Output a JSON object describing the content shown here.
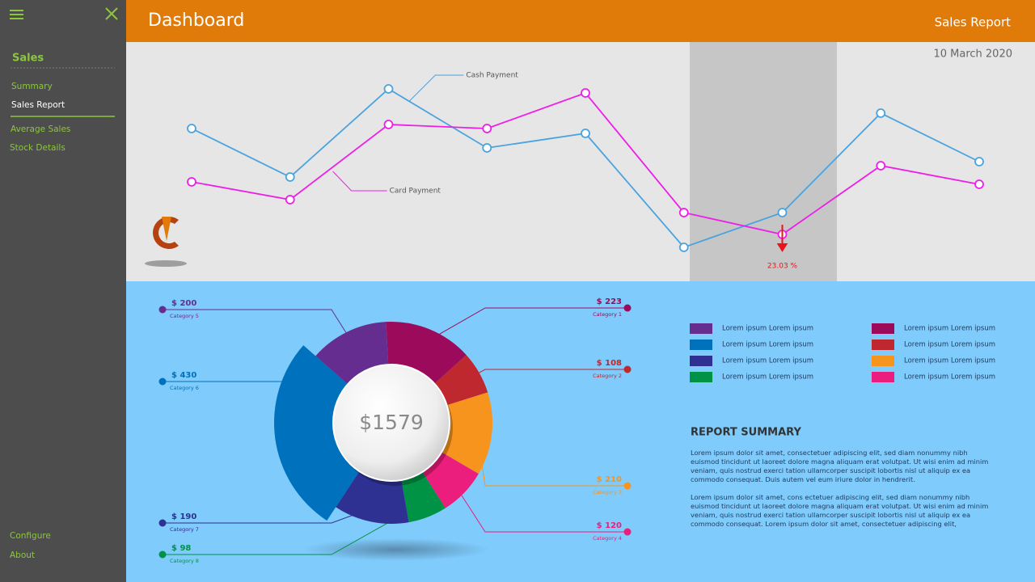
{
  "sidebar": {
    "section": "Sales",
    "items": [
      "Summary",
      "Sales Report",
      "Average Sales",
      "Stock Details"
    ],
    "footer_items": [
      "Configure",
      "About"
    ]
  },
  "header": {
    "title": "Dashboard",
    "page": "Sales Report",
    "date": "10 March 2020"
  },
  "chart_data": [
    {
      "type": "line",
      "categories": [
        null,
        null,
        null,
        null,
        null,
        null,
        null,
        null,
        null
      ],
      "series": [
        {
          "name": "Cash Payment",
          "color": "#4aa3df",
          "values": [
            191,
            131,
            240,
            167,
            185,
            44,
            87,
            210,
            150
          ]
        },
        {
          "name": "Card Payment",
          "color": "#ee1ee8",
          "values": [
            125,
            103,
            196,
            191,
            235,
            87,
            60,
            145,
            122
          ]
        }
      ],
      "annotations": [
        {
          "text": "23.03 %",
          "color": "#e8141b"
        }
      ]
    },
    {
      "type": "pie",
      "categories": [
        "Category 1",
        "Category 2",
        "Category 3",
        "Category 4",
        "Category 5",
        "Category 6",
        "Category 7",
        "Category 8"
      ],
      "values": [
        223,
        108,
        210,
        120,
        200,
        430,
        190,
        98
      ],
      "value_labels": [
        "$ 223",
        "$ 108",
        "$ 210",
        "$ 120",
        "$ 200",
        "$ 430",
        "$ 190",
        "$ 98"
      ],
      "colors": [
        "#9c0a5c",
        "#c0282f",
        "#f7941d",
        "#ec1e7d",
        "#662d91",
        "#0071bc",
        "#2e3192",
        "#009245"
      ],
      "center_label": "$1579"
    }
  ],
  "legend": [
    {
      "label": "Lorem ipsum Lorem ipsum",
      "color": "#662d91"
    },
    {
      "label": "Lorem ipsum Lorem ipsum",
      "color": "#0071bc"
    },
    {
      "label": "Lorem ipsum Lorem ipsum",
      "color": "#2e3192"
    },
    {
      "label": "Lorem ipsum Lorem ipsum",
      "color": "#009245"
    },
    {
      "label": "Lorem ipsum Lorem ipsum",
      "color": "#9c0a5c"
    },
    {
      "label": "Lorem ipsum Lorem ipsum",
      "color": "#c0282f"
    },
    {
      "label": "Lorem ipsum Lorem ipsum",
      "color": "#f7941d"
    },
    {
      "label": "Lorem ipsum Lorem ipsum",
      "color": "#ec1e7d"
    }
  ],
  "report_summary": {
    "title": "REPORT SUMMARY",
    "paragraphs": [
      "Lorem ipsum dolor sit amet, consectetuer adipiscing elit, sed diam nonummy nibh euismod tincidunt ut laoreet dolore magna aliquam erat volutpat. Ut wisi enim ad minim veniam, quis nostrud exerci tation ullamcorper suscipit lobortis nisl ut aliquip ex ea commodo consequat. Duis autem vel eum iriure dolor in hendrerit.",
      "Lorem ipsum dolor sit amet, cons ectetuer adipiscing elit, sed diam nonummy nibh euismod tincidunt ut laoreet dolore magna aliquam erat volutpat. Ut wisi enim ad minim veniam, quis nostrud exerci tation ullamcorper suscipit lobortis nisl ut aliquip ex ea commodo consequat. Lorem ipsum dolor sit amet, consectetuer adipiscing elit,"
    ]
  }
}
